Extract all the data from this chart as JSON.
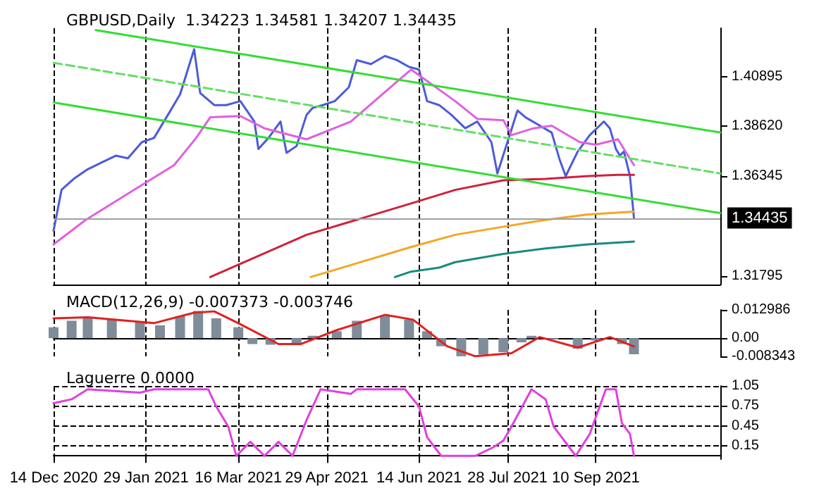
{
  "chart_data": [
    {
      "type": "line",
      "title": "GBPUSD,Daily  1.34223 1.34581 1.34207 1.34435",
      "xlim": [
        "2020-12-14",
        "2021-11-11"
      ],
      "xticks": [
        {
          "value": "2020-12-14",
          "label": null
        },
        {
          "value": "2021-01-29",
          "label": null
        },
        {
          "value": "2021-03-16",
          "label": null
        },
        {
          "value": "2021-04-29",
          "label": null
        },
        {
          "value": "2021-06-14",
          "label": null
        },
        {
          "value": "2021-07-28",
          "label": null
        },
        {
          "value": "2021-09-10",
          "label": null
        }
      ],
      "ylim": [
        1.314,
        1.431
      ],
      "yticks": [
        {
          "value": 1.40895,
          "label": "1.40895"
        },
        {
          "value": 1.3862,
          "label": "1.38620"
        },
        {
          "value": 1.36345,
          "label": "1.36345"
        },
        {
          "value": 1.31795,
          "label": "1.31795"
        }
      ],
      "tick_labels": "y",
      "grid": "x",
      "marker": "none",
      "ref_lines": [
        {
          "axis": "y",
          "value": 1.34435,
          "label": "1.34435",
          "color": "#a0a0a0"
        }
      ],
      "series": [
        {
          "color": "#4b5bd9",
          "x": [
            "2020-12-14",
            "2020-12-18",
            "2020-12-24",
            "2020-12-31",
            "2021-01-07",
            "2021-01-14",
            "2021-01-20",
            "2021-01-27",
            "2021-02-02",
            "2021-02-09",
            "2021-02-15",
            "2021-02-22",
            "2021-02-25",
            "2021-03-04",
            "2021-03-10",
            "2021-03-17",
            "2021-03-24",
            "2021-03-26",
            "2021-03-31",
            "2021-04-06",
            "2021-04-09",
            "2021-04-14",
            "2021-04-19",
            "2021-04-22",
            "2021-04-27",
            "2021-05-03",
            "2021-05-10",
            "2021-05-14",
            "2021-05-21",
            "2021-05-28",
            "2021-06-03",
            "2021-06-09",
            "2021-06-14",
            "2021-06-18",
            "2021-06-24",
            "2021-06-30",
            "2021-07-07",
            "2021-07-13",
            "2021-07-20",
            "2021-07-23",
            "2021-07-28",
            "2021-08-02",
            "2021-08-06",
            "2021-08-12",
            "2021-08-19",
            "2021-08-23",
            "2021-08-26",
            "2021-09-01",
            "2021-09-07",
            "2021-09-14",
            "2021-09-17",
            "2021-09-20",
            "2021-09-22",
            "2021-09-24",
            "2021-09-27",
            "2021-09-29"
          ],
          "values": [
            1.3386,
            1.3573,
            1.3622,
            1.3666,
            1.3697,
            1.3728,
            1.3716,
            1.379,
            1.3809,
            1.3915,
            1.4008,
            1.4214,
            1.4014,
            1.3959,
            1.3959,
            1.3977,
            1.3884,
            1.3759,
            1.3809,
            1.3884,
            1.3741,
            1.3772,
            1.3915,
            1.3946,
            1.3959,
            1.3977,
            1.404,
            1.4164,
            1.4146,
            1.4183,
            1.4164,
            1.4133,
            1.4121,
            1.3977,
            1.3959,
            1.3915,
            1.3853,
            1.3884,
            1.379,
            1.3647,
            1.379,
            1.3934,
            1.3903,
            1.3871,
            1.3834,
            1.371,
            1.3635,
            1.3747,
            1.3822,
            1.3884,
            1.3853,
            1.3759,
            1.3728,
            1.3747,
            1.3635,
            1.34435
          ]
        },
        {
          "color": "#e060e0",
          "x": [
            "2020-12-14",
            "2020-12-30",
            "2021-01-21",
            "2021-02-12",
            "2021-02-23",
            "2021-03-02",
            "2021-03-17",
            "2021-03-29",
            "2021-04-19",
            "2021-05-11",
            "2021-06-02",
            "2021-06-10",
            "2021-07-02",
            "2021-07-13",
            "2021-07-26",
            "2021-07-30",
            "2021-08-10",
            "2021-08-19",
            "2021-09-02",
            "2021-09-10",
            "2021-09-21",
            "2021-09-29"
          ],
          "values": [
            1.3323,
            1.3435,
            1.356,
            1.3685,
            1.3809,
            1.3903,
            1.3909,
            1.3853,
            1.3803,
            1.3884,
            1.4058,
            1.4121,
            1.3977,
            1.3896,
            1.389,
            1.3822,
            1.3853,
            1.3865,
            1.379,
            1.3778,
            1.3803,
            1.3685
          ]
        },
        {
          "color": "#d0203c",
          "x": [
            "2021-03-02",
            "2021-04-19",
            "2021-06-10",
            "2021-07-02",
            "2021-07-26",
            "2021-08-16",
            "2021-09-06",
            "2021-09-21",
            "2021-09-29"
          ],
          "values": [
            1.3174,
            1.3367,
            1.351,
            1.3572,
            1.3616,
            1.3622,
            1.3635,
            1.3641,
            1.3641
          ]
        },
        {
          "color": "#f5a623",
          "x": [
            "2021-04-21",
            "2021-06-10",
            "2021-07-02",
            "2021-07-26",
            "2021-08-16",
            "2021-09-06",
            "2021-09-29"
          ],
          "values": [
            1.3174,
            1.3311,
            1.3367,
            1.3404,
            1.3435,
            1.346,
            1.3473
          ]
        },
        {
          "color": "#1a8a80",
          "x": [
            "2021-06-02",
            "2021-06-10",
            "2021-06-24",
            "2021-07-02",
            "2021-07-26",
            "2021-08-16",
            "2021-09-06",
            "2021-09-29"
          ],
          "values": [
            1.3174,
            1.3199,
            1.3217,
            1.3242,
            1.328,
            1.3305,
            1.3323,
            1.3336
          ]
        },
        {
          "color": "#33dd33",
          "x": [
            "2021-01-04",
            "2021-11-11"
          ],
          "values": [
            1.4301,
            1.3834
          ]
        },
        {
          "color": "#33dd33",
          "x": [
            "2020-12-14",
            "2021-11-11"
          ],
          "values": [
            1.3971,
            1.3466
          ]
        },
        {
          "color": "#66dd66",
          "line_style": "dashed",
          "x": [
            "2020-12-14",
            "2021-11-11"
          ],
          "values": [
            1.4152,
            1.3647
          ]
        }
      ]
    },
    {
      "type": "bar",
      "title": "MACD(12,26,9) -0.007373 -0.003746",
      "xlim": [
        "2020-12-14",
        "2021-11-11"
      ],
      "xticks": [
        {
          "value": "2020-12-14",
          "label": null
        },
        {
          "value": "2021-01-29",
          "label": null
        },
        {
          "value": "2021-03-16",
          "label": null
        },
        {
          "value": "2021-04-29",
          "label": null
        },
        {
          "value": "2021-06-14",
          "label": null
        },
        {
          "value": "2021-07-28",
          "label": null
        },
        {
          "value": "2021-09-10",
          "label": null
        }
      ],
      "ylim": [
        -0.008343,
        0.012986
      ],
      "yticks": [
        {
          "value": 0.012986,
          "label": "0.012986"
        },
        {
          "value": 0,
          "label": "0.00"
        },
        {
          "value": -0.008343,
          "label": "-0.008343"
        }
      ],
      "tick_labels": "y",
      "grid": "x",
      "marker": "none",
      "series": [
        {
          "color": "#7f8c99",
          "x": [
            "2020-12-14",
            "2020-12-23",
            "2020-12-31",
            "2021-01-12",
            "2021-01-26",
            "2021-02-05",
            "2021-02-15",
            "2021-02-24",
            "2021-03-05",
            "2021-03-16",
            "2021-03-23",
            "2021-04-01",
            "2021-04-14",
            "2021-04-22",
            "2021-05-04",
            "2021-05-14",
            "2021-05-28",
            "2021-06-09",
            "2021-06-18",
            "2021-06-25",
            "2021-07-05",
            "2021-07-16",
            "2021-07-26",
            "2021-08-04",
            "2021-08-09",
            "2021-08-20",
            "2021-09-01",
            "2021-09-10",
            "2021-09-17",
            "2021-09-23",
            "2021-09-29"
          ],
          "values": [
            0.005,
            0.008,
            0.0091,
            0.0085,
            0.0075,
            0.0059,
            0.0101,
            0.0125,
            0.0091,
            0.005,
            -0.0027,
            -0.003,
            -0.0022,
            0.0011,
            0.0032,
            0.008,
            0.0101,
            0.0086,
            0.0032,
            -0.0037,
            -0.0083,
            -0.0075,
            -0.0064,
            -0.0019,
            0.0011,
            -0.0006,
            -0.0048,
            -0.0011,
            null,
            -0.0027,
            -0.007373
          ]
        },
        {
          "type": "line",
          "color": "#e02020",
          "x": [
            "2020-12-14",
            "2020-12-31",
            "2021-02-02",
            "2021-02-22",
            "2021-03-04",
            "2021-03-16",
            "2021-04-05",
            "2021-04-16",
            "2021-05-04",
            "2021-05-28",
            "2021-06-11",
            "2021-06-28",
            "2021-07-12",
            "2021-07-30",
            "2021-08-13",
            "2021-09-01",
            "2021-09-17",
            "2021-09-29"
          ],
          "values": [
            0.0091,
            0.0096,
            0.0069,
            0.0117,
            0.0123,
            0.0069,
            -0.0027,
            -0.0027,
            0.0037,
            0.0107,
            0.0085,
            -0.0037,
            -0.0083,
            -0.0069,
            0.0005,
            -0.0043,
            0.0005,
            -0.003746
          ]
        }
      ]
    },
    {
      "type": "line",
      "title": "Laguerre 0.0000",
      "xlim": [
        "2020-12-14",
        "2021-11-11"
      ],
      "xticks": [
        {
          "value": "2020-12-14",
          "label": "14 Dec 2020"
        },
        {
          "value": "2021-01-29",
          "label": "29 Jan 2021"
        },
        {
          "value": "2021-03-16",
          "label": "16 Mar 2021"
        },
        {
          "value": "2021-04-29",
          "label": "29 Apr 2021"
        },
        {
          "value": "2021-06-14",
          "label": "14 Jun 2021"
        },
        {
          "value": "2021-07-28",
          "label": "28 Jul 2021"
        },
        {
          "value": "2021-09-10",
          "label": "10 Sep 2021"
        }
      ],
      "ylim": [
        -0.05,
        1.05
      ],
      "yticks": [
        1.05,
        0.75,
        0.45,
        0.15
      ],
      "grid": true,
      "marker": "none",
      "series": [
        {
          "color": "#e040e0",
          "x": [
            "2020-12-14",
            "2020-12-23",
            "2020-12-31",
            "2021-01-26",
            "2021-02-02",
            "2021-03-01",
            "2021-03-05",
            "2021-03-11",
            "2021-03-15",
            "2021-03-22",
            "2021-03-29",
            "2021-04-05",
            "2021-04-12",
            "2021-04-19",
            "2021-04-26",
            "2021-05-11",
            "2021-05-14",
            "2021-06-07",
            "2021-06-14",
            "2021-06-18",
            "2021-06-25",
            "2021-07-12",
            "2021-07-21",
            "2021-07-26",
            "2021-07-30",
            "2021-08-09",
            "2021-08-16",
            "2021-08-20",
            "2021-08-31",
            "2021-09-07",
            "2021-09-15",
            "2021-09-20",
            "2021-09-23",
            "2021-09-27",
            "2021-09-29"
          ],
          "values": [
            0.79,
            0.85,
            1.0,
            0.95,
            1.0,
            1.0,
            0.74,
            0.44,
            0,
            0.21,
            0,
            0.21,
            0,
            0.54,
            1.0,
            0.93,
            1.0,
            1.0,
            0.74,
            0.28,
            0,
            0,
            0.13,
            0.23,
            0.44,
            1.0,
            0.85,
            0.44,
            0,
            0.33,
            1.0,
            1.0,
            0.49,
            0.33,
            0
          ]
        }
      ]
    }
  ]
}
